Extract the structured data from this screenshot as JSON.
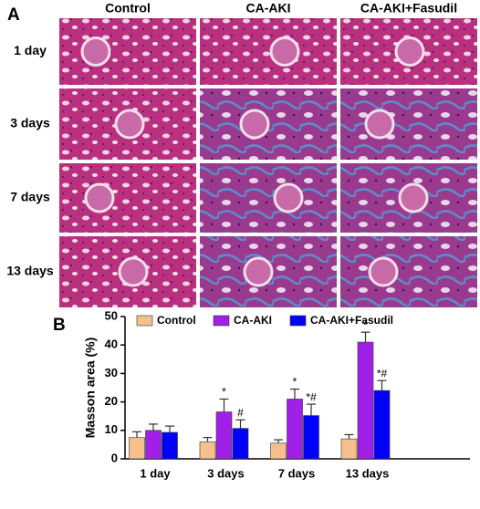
{
  "panel_a": {
    "label": "A",
    "columns": [
      "Control",
      "CA-AKI",
      "CA-AKI+Fasudil"
    ],
    "rows": [
      "1 day",
      "3 days",
      "7 days",
      "13 days"
    ]
  },
  "panel_b_label": "B",
  "chart_data": {
    "type": "bar",
    "y_label": "Masson area (%)",
    "categories": [
      "1 day",
      "3 days",
      "7 days",
      "13 days"
    ],
    "series": [
      {
        "name": "Control",
        "color": "#F5C08C",
        "values": [
          7.5,
          6,
          5.5,
          7
        ],
        "errors": [
          2,
          1.5,
          1.2,
          1.5
        ],
        "markers": [
          null,
          null,
          null,
          null
        ]
      },
      {
        "name": "CA-AKI",
        "color": "#A020E8",
        "values": [
          10,
          16.5,
          21,
          41
        ],
        "errors": [
          2.2,
          4.5,
          3.5,
          3.5
        ],
        "markers": [
          null,
          "*",
          "*",
          "*"
        ]
      },
      {
        "name": "CA-AKI+Fasudil",
        "color": "#0000FF",
        "values": [
          9.3,
          10.7,
          15.2,
          24
        ],
        "errors": [
          2.2,
          3,
          4,
          3.5
        ],
        "markers": [
          null,
          "#",
          "*#",
          "*#"
        ]
      }
    ],
    "ylim": [
      0,
      50
    ],
    "yticks": [
      0,
      10,
      20,
      30,
      40,
      50
    ],
    "grid": false,
    "legend": "top"
  }
}
